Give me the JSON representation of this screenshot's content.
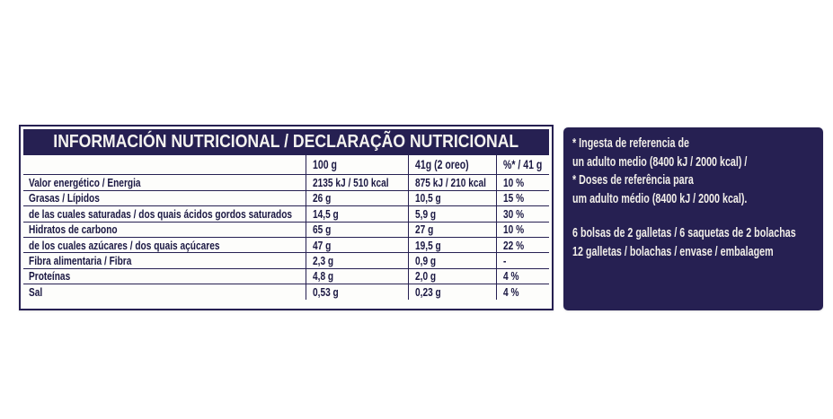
{
  "colors": {
    "navy": "#262052",
    "table_text": "#1b1843",
    "panel_text": "#f2efe9"
  },
  "table": {
    "title": "INFORMACIÓN NUTRICIONAL / DECLARAÇÃO NUTRICIONAL",
    "column_headers": [
      "100 g",
      "41g (2 oreo)",
      "%* / 41 g"
    ],
    "rows": [
      {
        "label": "Valor energético / Energia",
        "per_100g": "2135 kJ / 510 kcal",
        "per_41g": "875 kJ / 210 kcal",
        "pct": "10 %"
      },
      {
        "label": "Grasas / Lípidos",
        "per_100g": "26 g",
        "per_41g": "10,5 g",
        "pct": "15 %"
      },
      {
        "label": "de las cuales saturadas / dos quais ácidos gordos saturados",
        "per_100g": "14,5 g",
        "per_41g": "5,9 g",
        "pct": "30 %"
      },
      {
        "label": "Hidratos de carbono",
        "per_100g": "65 g",
        "per_41g": "27 g",
        "pct": "10 %"
      },
      {
        "label": "de los cuales azúcares / dos quais açúcares",
        "per_100g": "47 g",
        "per_41g": "19,5 g",
        "pct": "22 %"
      },
      {
        "label": "Fibra alimentaria / Fibra",
        "per_100g": "2,3 g",
        "per_41g": "0,9 g",
        "pct": "-"
      },
      {
        "label": "Proteínas",
        "per_100g": "4,8 g",
        "per_41g": "2,0 g",
        "pct": "4 %"
      },
      {
        "label": "Sal",
        "per_100g": "0,53 g",
        "per_41g": "0,23 g",
        "pct": "4 %"
      }
    ]
  },
  "side_panel": {
    "reference_lines": [
      "* Ingesta de referencia de",
      "un adulto medio (8400 kJ / 2000 kcal) /",
      "* Doses de referência para",
      "um adulto médio (8400 kJ / 2000 kcal)."
    ],
    "package_lines": [
      "6 bolsas de 2 galletas / 6 saquetas de 2 bolachas",
      "12 galletas / bolachas / envase / embalagem"
    ]
  }
}
